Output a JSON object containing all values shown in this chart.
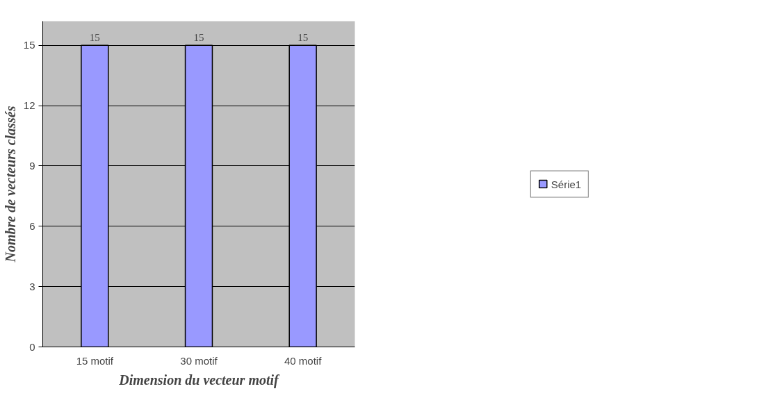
{
  "chart_data": {
    "type": "bar",
    "xlabel": "Dimension du vecteur motif",
    "ylabel": "Nombre de vecteurs classés",
    "categories": [
      "15 motif",
      "30 motif",
      "40 motif"
    ],
    "series": [
      {
        "name": "Série1",
        "color": "#9999ff",
        "values": [
          15,
          15,
          15
        ]
      }
    ],
    "ylim": [
      0,
      15
    ],
    "yticks": [
      0,
      3,
      6,
      9,
      12,
      15
    ],
    "grid": "y",
    "legend": "right",
    "data_labels": true
  }
}
